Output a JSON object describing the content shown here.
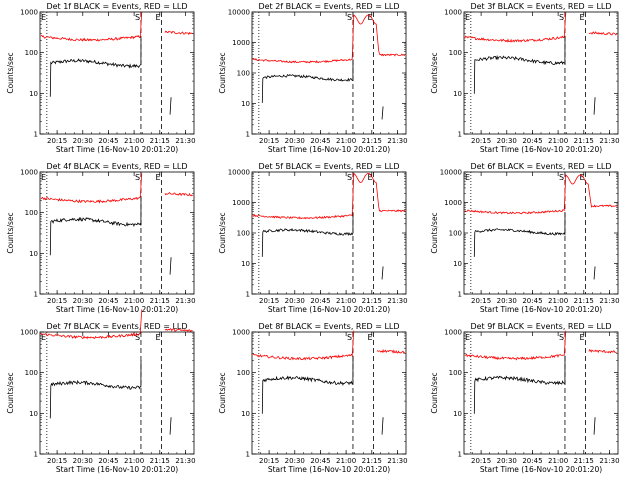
{
  "chart_data": [
    {
      "type": "line",
      "title": "Det 1f BLACK = Events, RED = LLD",
      "xlabel": "Start Time (16-Nov-10 20:01:20)",
      "ylabel": "Counts/sec",
      "ylim": [
        1,
        1000
      ],
      "yscale": "log",
      "grid": false,
      "x_ticks": [
        "20:15",
        "20:30",
        "20:45",
        "21:00",
        "21:15",
        "21:30"
      ],
      "y_ticks": [
        "1",
        "10",
        "100",
        "1000"
      ],
      "markers": {
        "start_label": "E",
        "mid_label": "S",
        "end_label": "E"
      },
      "series": [
        {
          "color": "#000000",
          "level": 55,
          "kind": "events"
        },
        {
          "color": "#ff0000",
          "level": 250,
          "kind": "lld"
        }
      ]
    },
    {
      "type": "line",
      "title": "Det 2f BLACK = Events, RED = LLD",
      "xlabel": "Start Time (16-Nov-10 20:01:20)",
      "ylabel": "Counts/sec",
      "ylim": [
        1,
        10000
      ],
      "yscale": "log",
      "grid": false,
      "x_ticks": [
        "20:15",
        "20:30",
        "20:45",
        "21:00",
        "21:15",
        "21:30"
      ],
      "y_ticks": [
        "1",
        "10",
        "100",
        "1000",
        "10000"
      ],
      "markers": {
        "start_label": "",
        "mid_label": "S",
        "end_label": "E"
      },
      "series": [
        {
          "color": "#000000",
          "level": 70,
          "kind": "events"
        },
        {
          "color": "#ff0000",
          "level": 280,
          "kind": "lld",
          "flare": 8000
        }
      ]
    },
    {
      "type": "line",
      "title": "Det 3f BLACK = Events, RED = LLD",
      "xlabel": "Start Time (16-Nov-10 20:01:20)",
      "ylabel": "Counts/sec",
      "ylim": [
        1,
        1000
      ],
      "yscale": "log",
      "grid": false,
      "x_ticks": [
        "20:15",
        "20:30",
        "20:45",
        "21:00",
        "21:15",
        "21:30"
      ],
      "y_ticks": [
        "1",
        "10",
        "100",
        "1000"
      ],
      "markers": {
        "start_label": "E",
        "mid_label": "S",
        "end_label": "E"
      },
      "series": [
        {
          "color": "#000000",
          "level": 65,
          "kind": "events"
        },
        {
          "color": "#ff0000",
          "level": 240,
          "kind": "lld"
        }
      ]
    },
    {
      "type": "line",
      "title": "Det 4f BLACK = Events, RED = LLD",
      "xlabel": "Start Time (16-Nov-10 20:01:20)",
      "ylabel": "Counts/sec",
      "ylim": [
        1,
        1000
      ],
      "yscale": "log",
      "grid": false,
      "x_ticks": [
        "20:15",
        "20:30",
        "20:45",
        "21:00",
        "21:15",
        "21:30"
      ],
      "y_ticks": [
        "1",
        "10",
        "100",
        "1000"
      ],
      "markers": {
        "start_label": "E",
        "mid_label": "S",
        "end_label": "E"
      },
      "series": [
        {
          "color": "#000000",
          "level": 60,
          "kind": "events"
        },
        {
          "color": "#ff0000",
          "level": 230,
          "kind": "lld"
        }
      ]
    },
    {
      "type": "line",
      "title": "Det 5f BLACK = Events, RED = LLD",
      "xlabel": "Start Time (16-Nov-10 20:01:20)",
      "ylabel": "Counts/sec",
      "ylim": [
        1,
        10000
      ],
      "yscale": "log",
      "grid": false,
      "x_ticks": [
        "20:15",
        "20:30",
        "20:45",
        "21:00",
        "21:15",
        "21:30"
      ],
      "y_ticks": [
        "1",
        "10",
        "100",
        "1000",
        "10000"
      ],
      "markers": {
        "start_label": "",
        "mid_label": "S",
        "end_label": "E"
      },
      "series": [
        {
          "color": "#000000",
          "level": 110,
          "kind": "events"
        },
        {
          "color": "#ff0000",
          "level": 380,
          "kind": "lld",
          "flare": 9000
        }
      ]
    },
    {
      "type": "line",
      "title": "Det 6f BLACK = Events, RED = LLD",
      "xlabel": "Start Time (16-Nov-10 20:01:20)",
      "ylabel": "Counts/sec",
      "ylim": [
        1,
        10000
      ],
      "yscale": "log",
      "grid": false,
      "x_ticks": [
        "20:15",
        "20:30",
        "20:45",
        "21:00",
        "21:15",
        "21:30"
      ],
      "y_ticks": [
        "1",
        "10",
        "100",
        "1000",
        "10000"
      ],
      "markers": {
        "start_label": "E",
        "mid_label": "S",
        "end_label": "E"
      },
      "series": [
        {
          "color": "#000000",
          "level": 110,
          "kind": "events"
        },
        {
          "color": "#ff0000",
          "level": 550,
          "kind": "lld",
          "flare": 8000
        }
      ]
    },
    {
      "type": "line",
      "title": "Det 7f BLACK = Events, RED = LLD",
      "xlabel": "Start Time (16-Nov-10 20:01:20)",
      "ylabel": "Counts/sec",
      "ylim": [
        1,
        1000
      ],
      "yscale": "log",
      "grid": false,
      "x_ticks": [
        "20:15",
        "20:30",
        "20:45",
        "21:00",
        "21:15",
        "21:30"
      ],
      "y_ticks": [
        "1",
        "10",
        "100",
        "1000"
      ],
      "markers": {
        "start_label": "E",
        "mid_label": "S",
        "end_label": "E"
      },
      "series": [
        {
          "color": "#000000",
          "level": 50,
          "kind": "events"
        },
        {
          "color": "#ff0000",
          "level": 900,
          "kind": "lld"
        }
      ]
    },
    {
      "type": "line",
      "title": "Det 8f BLACK = Events, RED = LLD",
      "xlabel": "Start Time (16-Nov-10 20:01:20)",
      "ylabel": "Counts/sec",
      "ylim": [
        1,
        1000
      ],
      "yscale": "log",
      "grid": false,
      "x_ticks": [
        "20:15",
        "20:30",
        "20:45",
        "21:00",
        "21:15",
        "21:30"
      ],
      "y_ticks": [
        "1",
        "10",
        "100",
        "1000"
      ],
      "markers": {
        "start_label": "",
        "mid_label": "S",
        "end_label": "E"
      },
      "series": [
        {
          "color": "#000000",
          "level": 65,
          "kind": "events"
        },
        {
          "color": "#ff0000",
          "level": 270,
          "kind": "lld"
        }
      ]
    },
    {
      "type": "line",
      "title": "Det 9f BLACK = Events, RED = LLD",
      "xlabel": "Start Time (16-Nov-10 20:01:20)",
      "ylabel": "Counts/sec",
      "ylim": [
        1,
        1000
      ],
      "yscale": "log",
      "grid": false,
      "x_ticks": [
        "20:15",
        "20:30",
        "20:45",
        "21:00",
        "21:15",
        "21:30"
      ],
      "y_ticks": [
        "1",
        "10",
        "100",
        "1000"
      ],
      "markers": {
        "start_label": "E",
        "mid_label": "S",
        "end_label": "E"
      },
      "series": [
        {
          "color": "#000000",
          "level": 65,
          "kind": "events"
        },
        {
          "color": "#ff0000",
          "level": 270,
          "kind": "lld"
        }
      ]
    }
  ]
}
